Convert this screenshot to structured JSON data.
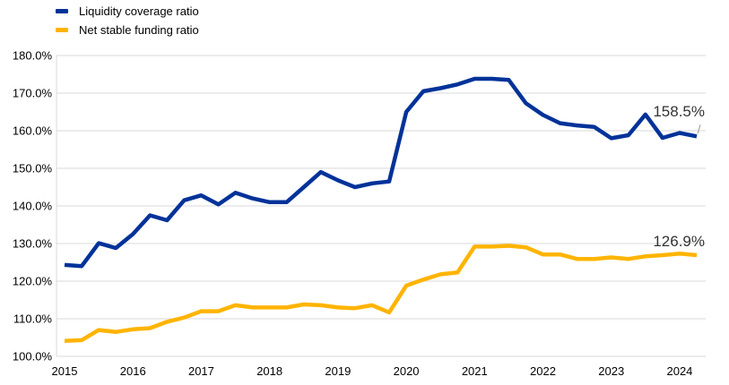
{
  "chart_data": {
    "type": "line",
    "title": "",
    "xlabel": "",
    "ylabel": "",
    "ylim": [
      100,
      180
    ],
    "yticks": [
      "100.0%",
      "110.0%",
      "120.0%",
      "130.0%",
      "140.0%",
      "150.0%",
      "160.0%",
      "170.0%",
      "180.0%"
    ],
    "ytick_values": [
      100,
      110,
      120,
      130,
      140,
      150,
      160,
      170,
      180
    ],
    "xticks": [
      "2015",
      "2016",
      "2017",
      "2018",
      "2019",
      "2020",
      "2021",
      "2022",
      "2023",
      "2024"
    ],
    "grid": "horizontal",
    "legend_position": "top-left",
    "x": [
      "2015Q1",
      "2015Q2",
      "2015Q3",
      "2015Q4",
      "2016Q1",
      "2016Q2",
      "2016Q3",
      "2016Q4",
      "2017Q1",
      "2017Q2",
      "2017Q3",
      "2017Q4",
      "2018Q1",
      "2018Q2",
      "2018Q3",
      "2018Q4",
      "2019Q1",
      "2019Q2",
      "2019Q3",
      "2019Q4",
      "2020Q1",
      "2020Q2",
      "2020Q3",
      "2020Q4",
      "2021Q1",
      "2021Q2",
      "2021Q3",
      "2021Q4",
      "2022Q1",
      "2022Q2",
      "2022Q3",
      "2022Q4",
      "2023Q1",
      "2023Q2",
      "2023Q3",
      "2023Q4",
      "2024Q1",
      "2024Q2"
    ],
    "series": [
      {
        "name": "Liquidity coverage ratio",
        "color": "#003299",
        "values": [
          124.3,
          124.0,
          130.1,
          128.8,
          132.5,
          137.5,
          136.2,
          141.5,
          142.8,
          140.4,
          143.5,
          142.0,
          141.0,
          141.0,
          145.0,
          149.0,
          146.8,
          145.0,
          146.0,
          146.5,
          165.0,
          170.5,
          171.3,
          172.3,
          173.8,
          173.8,
          173.5,
          167.3,
          164.2,
          162.0,
          161.4,
          161.0,
          158.0,
          158.8,
          164.3,
          158.1,
          159.4,
          158.5
        ],
        "end_label": "158.5%"
      },
      {
        "name": "Net stable funding ratio",
        "color": "#FFB400",
        "values": [
          104.1,
          104.3,
          107.0,
          106.5,
          107.2,
          107.5,
          109.2,
          110.3,
          112.0,
          112.0,
          113.6,
          113.0,
          113.0,
          113.0,
          113.8,
          113.6,
          113.0,
          112.8,
          113.6,
          111.7,
          118.8,
          120.4,
          121.8,
          122.3,
          129.2,
          129.2,
          129.4,
          129.0,
          127.1,
          127.1,
          125.9,
          125.9,
          126.3,
          125.9,
          126.6,
          126.9,
          127.3,
          126.9
        ],
        "end_label": "126.9%"
      }
    ]
  }
}
